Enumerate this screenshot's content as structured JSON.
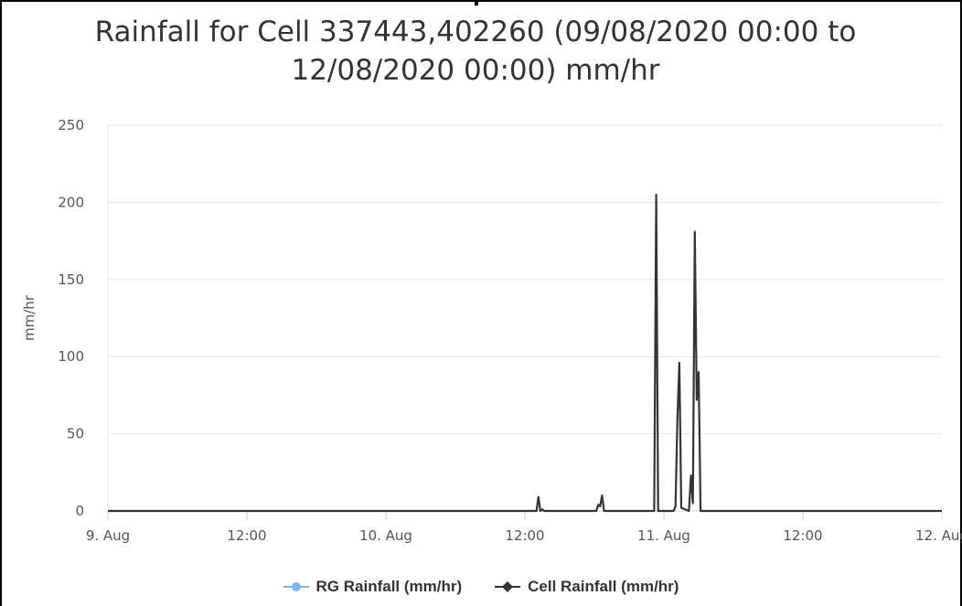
{
  "chart_data": {
    "type": "line",
    "title_lines": [
      "Rainfall for Cell 337443,402260 (09/08/2020 00:00 to",
      "12/08/2020 00:00) mm/hr"
    ],
    "ylabel": "mm/hr",
    "xlabel": "",
    "ylim": [
      0,
      250
    ],
    "yticks": [
      0,
      50,
      100,
      150,
      200,
      250
    ],
    "xlim": [
      "2020-08-09 00:00",
      "2020-08-12 00:00"
    ],
    "xticks": [
      {
        "t": "2020-08-09 00:00",
        "label": "9. Aug"
      },
      {
        "t": "2020-08-09 12:00",
        "label": "12:00"
      },
      {
        "t": "2020-08-10 00:00",
        "label": "10. Aug"
      },
      {
        "t": "2020-08-10 12:00",
        "label": "12:00"
      },
      {
        "t": "2020-08-11 00:00",
        "label": "11. Aug"
      },
      {
        "t": "2020-08-11 12:00",
        "label": "12:00"
      },
      {
        "t": "2020-08-12 00:00",
        "label": "12. Aug"
      }
    ],
    "grid": true,
    "legend_position": "bottom",
    "series": [
      {
        "name": "RG Rainfall (mm/hr)",
        "color": "#7cb5ec",
        "marker": "circle",
        "points": []
      },
      {
        "name": "Cell Rainfall (mm/hr)",
        "color": "#333333",
        "marker": "diamond",
        "points": [
          [
            "2020-08-09 00:00",
            0
          ],
          [
            "2020-08-10 13:00",
            0
          ],
          [
            "2020-08-10 13:10",
            9
          ],
          [
            "2020-08-10 13:20",
            0
          ],
          [
            "2020-08-10 13:30",
            1
          ],
          [
            "2020-08-10 13:40",
            0
          ],
          [
            "2020-08-10 18:10",
            0
          ],
          [
            "2020-08-10 18:20",
            4
          ],
          [
            "2020-08-10 18:30",
            3
          ],
          [
            "2020-08-10 18:40",
            10
          ],
          [
            "2020-08-10 18:50",
            0
          ],
          [
            "2020-08-10 23:10",
            0
          ],
          [
            "2020-08-10 23:20",
            205
          ],
          [
            "2020-08-10 23:30",
            0
          ],
          [
            "2020-08-11 00:50",
            0
          ],
          [
            "2020-08-11 01:00",
            3
          ],
          [
            "2020-08-11 01:10",
            60
          ],
          [
            "2020-08-11 01:20",
            96
          ],
          [
            "2020-08-11 01:30",
            2
          ],
          [
            "2020-08-11 02:10",
            0
          ],
          [
            "2020-08-11 02:20",
            23
          ],
          [
            "2020-08-11 02:30",
            5
          ],
          [
            "2020-08-11 02:40",
            181
          ],
          [
            "2020-08-11 02:50",
            72
          ],
          [
            "2020-08-11 03:00",
            90
          ],
          [
            "2020-08-11 03:10",
            0
          ],
          [
            "2020-08-12 00:00",
            0
          ]
        ]
      }
    ]
  }
}
